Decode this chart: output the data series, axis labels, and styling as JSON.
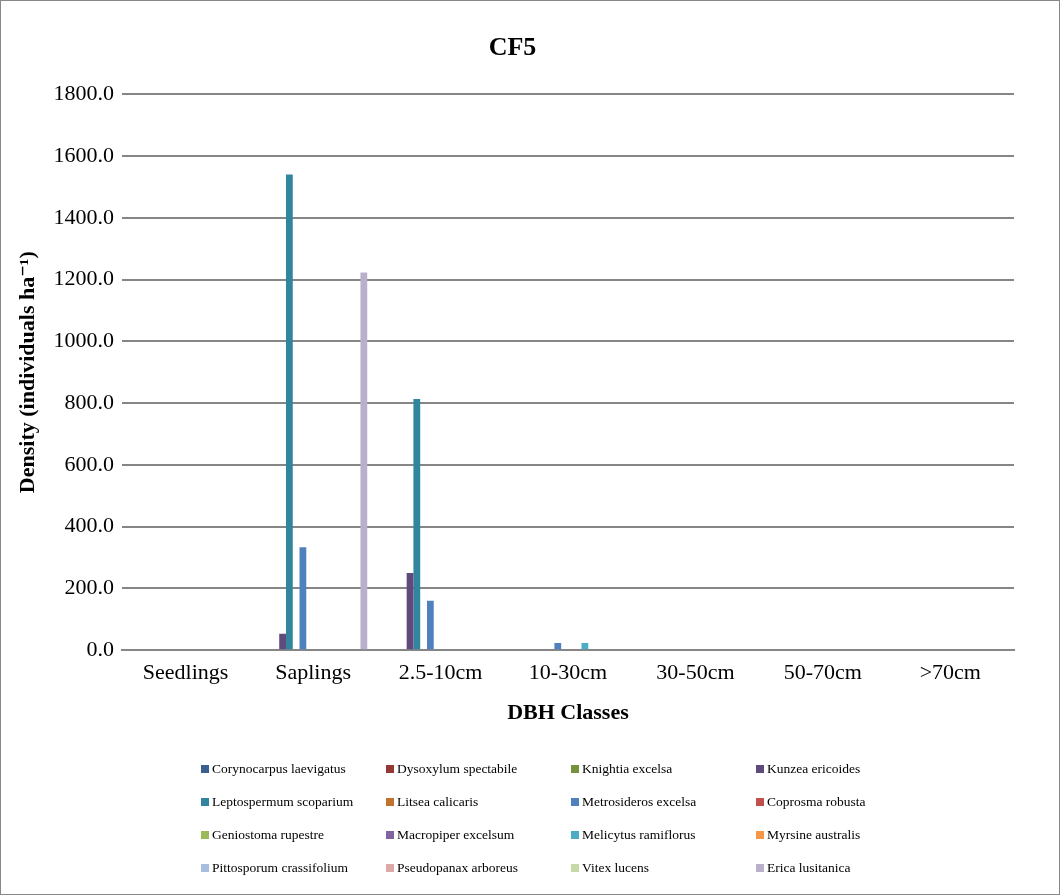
{
  "chart_data": {
    "type": "bar",
    "title": "CF5",
    "xlabel": "DBH Classes",
    "ylabel": "Density (individuals ha⁻¹)",
    "categories": [
      "Seedlings",
      "Saplings",
      "2.5-10cm",
      "10-30cm",
      "30-50cm",
      "50-70cm",
      ">70cm"
    ],
    "series": [
      {
        "name": "Corynocarpus laevigatus",
        "color": "#3b5f8f",
        "values": [
          0,
          0,
          0,
          0,
          0,
          0,
          0
        ]
      },
      {
        "name": "Dysoxylum spectabile",
        "color": "#953735",
        "values": [
          0,
          0,
          0,
          0,
          0,
          0,
          0
        ]
      },
      {
        "name": "Knightia excelsa",
        "color": "#76923c",
        "values": [
          0,
          0,
          0,
          0,
          0,
          0,
          0
        ]
      },
      {
        "name": "Kunzea ericoides",
        "color": "#604a7b",
        "values": [
          0,
          53,
          250,
          0,
          0,
          0,
          0
        ]
      },
      {
        "name": "Leptospermum scoparium",
        "color": "#31859c",
        "values": [
          0,
          1540,
          813,
          0,
          0,
          0,
          0
        ]
      },
      {
        "name": "Litsea calicaris",
        "color": "#c0722f",
        "values": [
          0,
          0,
          0,
          0,
          0,
          0,
          0
        ]
      },
      {
        "name": "Metrosideros excelsa",
        "color": "#4f81bd",
        "values": [
          0,
          333,
          160,
          23,
          0,
          0,
          0
        ]
      },
      {
        "name": "Coprosma robusta",
        "color": "#c0504d",
        "values": [
          0,
          0,
          0,
          0,
          0,
          0,
          0
        ]
      },
      {
        "name": "Geniostoma rupestre",
        "color": "#9bbb59",
        "values": [
          0,
          0,
          0,
          0,
          0,
          0,
          0
        ]
      },
      {
        "name": "Macropiper excelsum",
        "color": "#8064a2",
        "values": [
          0,
          0,
          0,
          0,
          0,
          0,
          0
        ]
      },
      {
        "name": "Melicytus ramiflorus",
        "color": "#4bacc6",
        "values": [
          0,
          0,
          0,
          23,
          0,
          0,
          0
        ]
      },
      {
        "name": "Myrsine australis",
        "color": "#f79646",
        "values": [
          0,
          0,
          0,
          0,
          0,
          0,
          0
        ]
      },
      {
        "name": "Pittosporum crassifolium",
        "color": "#a9bde0",
        "values": [
          0,
          0,
          0,
          0,
          0,
          0,
          0
        ]
      },
      {
        "name": "Pseudopanax arboreus",
        "color": "#dca9a8",
        "values": [
          0,
          0,
          0,
          0,
          0,
          0,
          0
        ]
      },
      {
        "name": "Vitex lucens",
        "color": "#c8d9a8",
        "values": [
          0,
          0,
          0,
          0,
          0,
          0,
          0
        ]
      },
      {
        "name": "Erica lusitanica",
        "color": "#b9b1cc",
        "values": [
          0,
          1223,
          0,
          0,
          0,
          0,
          0
        ]
      }
    ],
    "ylim": [
      0,
      1800
    ],
    "yticks": [
      {
        "value": 0,
        "label": "0.0"
      },
      {
        "value": 200,
        "label": "200.0"
      },
      {
        "value": 400,
        "label": "400.0"
      },
      {
        "value": 600,
        "label": "600.0"
      },
      {
        "value": 800,
        "label": "800.0"
      },
      {
        "value": 1000,
        "label": "1000.0"
      },
      {
        "value": 1200,
        "label": "1200.0"
      },
      {
        "value": 1400,
        "label": "1400.0"
      },
      {
        "value": 1600,
        "label": "1600.0"
      },
      {
        "value": 1800,
        "label": "1800.0"
      }
    ],
    "grid": "y",
    "legend": "bottom"
  }
}
